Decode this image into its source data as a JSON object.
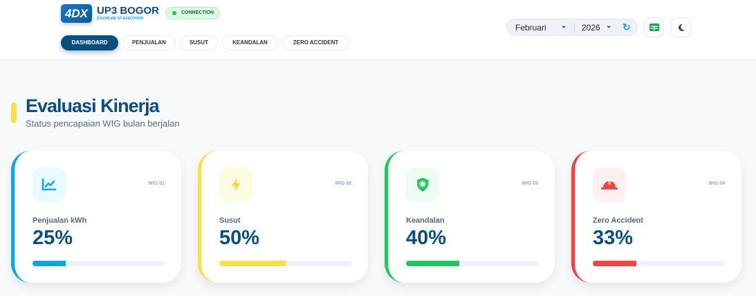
{
  "header": {
    "logo": "4DX",
    "brand": "UP3 BOGOR",
    "tagline": "DISCIPLINE OF EXECUTION",
    "connection": "CONNECTION",
    "nav": [
      {
        "label": "DASHBOARD",
        "active": true
      },
      {
        "label": "PENJUALAN"
      },
      {
        "label": "SUSUT"
      },
      {
        "label": "KEANDALAN"
      },
      {
        "label": "ZERO ACCIDENT"
      }
    ],
    "month": "Februari",
    "year": "2026",
    "icons": [
      "refresh-icon",
      "spreadsheet-icon",
      "moon-icon"
    ]
  },
  "section": {
    "title": "Evaluasi Kinerja",
    "subtitle": "Status pencapaian WIG bulan berjalan"
  },
  "cards": [
    {
      "wig": "WIG 01",
      "label": "Penjualan kWh",
      "value": "25%",
      "progress": 25,
      "color": "#0ea5e0",
      "bg": "#e8fbff",
      "icon": "chart-line-icon"
    },
    {
      "wig": "WIG 02",
      "label": "Susut",
      "value": "50%",
      "progress": 50,
      "color": "#f9e04b",
      "bg": "#fefbe3",
      "icon": "bolt-icon"
    },
    {
      "wig": "WIG 03",
      "label": "Keandalan",
      "value": "40%",
      "progress": 40,
      "color": "#22c55e",
      "bg": "#edfdf2",
      "icon": "shield-virus-icon"
    },
    {
      "wig": "WIG 04",
      "label": "Zero Accident",
      "value": "33%",
      "progress": 33,
      "color": "#ef4444",
      "bg": "#fff0f0",
      "icon": "hard-hat-icon"
    }
  ]
}
